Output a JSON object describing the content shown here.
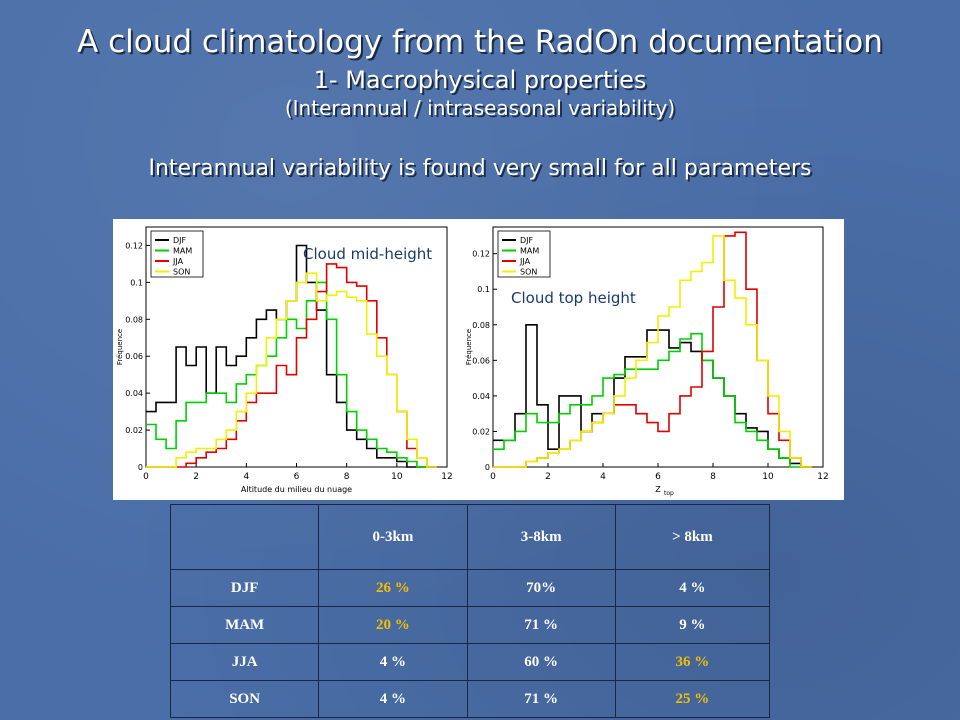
{
  "title": "A cloud climatology from the RadOn documentation",
  "subtitle": "1- Macrophysical properties",
  "subtitle2": "(Interannual / intraseasonal variability)",
  "headline": "Interannual variability is found very small for all parameters",
  "colors": {
    "DJF": "#000000",
    "MAM": "#00d000",
    "JJA": "#e00000",
    "SON": "#f0f000",
    "highlight": "#f2c000"
  },
  "chart_data": [
    {
      "type": "line",
      "annotation": "Cloud mid-height",
      "xlabel": "Altitude du milieu du nuage",
      "ylabel": "Fréquence",
      "xlim": [
        0,
        12
      ],
      "ylim": [
        0,
        0.13
      ],
      "xticks": [
        "0",
        "2",
        "4",
        "6",
        "8",
        "10",
        "12"
      ],
      "yticks": [
        "0",
        "0.02",
        "0.04",
        "0.06",
        "0.08",
        "0.1",
        "0.12"
      ],
      "legend_position": "top-left",
      "bin_edges": [
        0,
        0.4,
        0.8,
        1.2,
        1.6,
        2.0,
        2.4,
        2.8,
        3.2,
        3.6,
        4.0,
        4.4,
        4.8,
        5.2,
        5.6,
        6.0,
        6.4,
        6.8,
        7.2,
        7.6,
        8.0,
        8.4,
        8.8,
        9.2,
        9.6,
        10.0,
        10.4,
        10.8,
        11.2,
        11.6
      ],
      "series": [
        {
          "name": "DJF",
          "values": [
            0.03,
            0.035,
            0.035,
            0.065,
            0.055,
            0.065,
            0.04,
            0.065,
            0.055,
            0.06,
            0.07,
            0.08,
            0.085,
            0.08,
            0.09,
            0.12,
            0.1,
            0.085,
            0.05,
            0.035,
            0.02,
            0.015,
            0.01,
            0.005,
            0.005,
            0.003,
            0,
            0,
            0
          ]
        },
        {
          "name": "MAM",
          "values": [
            0.023,
            0.015,
            0.01,
            0.025,
            0.035,
            0.035,
            0.04,
            0.04,
            0.035,
            0.045,
            0.05,
            0.055,
            0.06,
            0.07,
            0.08,
            0.075,
            0.09,
            0.1,
            0.08,
            0.05,
            0.03,
            0.02,
            0.015,
            0.01,
            0.008,
            0.005,
            0.003,
            0,
            0
          ]
        },
        {
          "name": "JJA",
          "values": [
            0,
            0,
            0,
            0,
            0.002,
            0.005,
            0.008,
            0.01,
            0.015,
            0.025,
            0.035,
            0.04,
            0.04,
            0.055,
            0.05,
            0.07,
            0.08,
            0.095,
            0.11,
            0.108,
            0.1,
            0.098,
            0.09,
            0.07,
            0.05,
            0.03,
            0.01,
            0.005,
            0
          ]
        },
        {
          "name": "SON",
          "values": [
            0,
            0,
            0,
            0.005,
            0.008,
            0.01,
            0.01,
            0.015,
            0.02,
            0.03,
            0.04,
            0.055,
            0.07,
            0.08,
            0.09,
            0.1,
            0.105,
            0.09,
            0.093,
            0.095,
            0.092,
            0.09,
            0.072,
            0.06,
            0.05,
            0.03,
            0.015,
            0.005,
            0
          ]
        }
      ]
    },
    {
      "type": "line",
      "annotation": "Cloud top height",
      "xlabel": "Z",
      "xlabel_sub": "top",
      "ylabel": "Fréquence",
      "xlim": [
        0,
        12
      ],
      "ylim": [
        0,
        0.135
      ],
      "xticks": [
        "0",
        "2",
        "4",
        "6",
        "8",
        "10",
        "12"
      ],
      "yticks": [
        "0",
        "0.02",
        "0.04",
        "0.06",
        "0.08",
        "0.1",
        "0.12"
      ],
      "legend_position": "top-left",
      "bin_edges": [
        0,
        0.4,
        0.8,
        1.2,
        1.6,
        2.0,
        2.4,
        2.8,
        3.2,
        3.6,
        4.0,
        4.4,
        4.8,
        5.2,
        5.6,
        6.0,
        6.4,
        6.8,
        7.2,
        7.6,
        8.0,
        8.4,
        8.8,
        9.2,
        9.6,
        10.0,
        10.4,
        10.8,
        11.2,
        11.6
      ],
      "series": [
        {
          "name": "DJF",
          "values": [
            0.015,
            0.015,
            0.03,
            0.08,
            0.035,
            0.01,
            0.04,
            0.04,
            0.02,
            0.03,
            0.03,
            0.05,
            0.062,
            0.062,
            0.077,
            0.077,
            0.067,
            0.07,
            0.065,
            0.06,
            0.05,
            0.04,
            0.03,
            0.022,
            0.02,
            0.01,
            0.005,
            0.002,
            0
          ]
        },
        {
          "name": "MAM",
          "values": [
            0.01,
            0.015,
            0.02,
            0.03,
            0.025,
            0.025,
            0.03,
            0.035,
            0.035,
            0.04,
            0.05,
            0.052,
            0.055,
            0.055,
            0.055,
            0.06,
            0.065,
            0.072,
            0.075,
            0.06,
            0.05,
            0.04,
            0.025,
            0.02,
            0.015,
            0.01,
            0.005,
            0,
            0
          ]
        },
        {
          "name": "JJA",
          "values": [
            0,
            0,
            0,
            0.003,
            0.005,
            0.008,
            0.01,
            0.015,
            0.02,
            0.025,
            0.03,
            0.035,
            0.035,
            0.03,
            0.025,
            0.02,
            0.03,
            0.04,
            0.045,
            0.065,
            0.09,
            0.13,
            0.132,
            0.1,
            0.06,
            0.03,
            0.015,
            0.005,
            0
          ]
        },
        {
          "name": "SON",
          "values": [
            0,
            0,
            0,
            0.003,
            0.005,
            0.008,
            0.01,
            0.015,
            0.02,
            0.025,
            0.03,
            0.04,
            0.05,
            0.06,
            0.07,
            0.085,
            0.09,
            0.105,
            0.11,
            0.115,
            0.13,
            0.105,
            0.095,
            0.08,
            0.06,
            0.04,
            0.02,
            0.005,
            0
          ]
        }
      ]
    }
  ],
  "table": {
    "headers": [
      "",
      "0-3km",
      "3-8km",
      "> 8km"
    ],
    "rows": [
      {
        "label": "DJF",
        "c1": "26 %",
        "c2": "70%",
        "c3": "4 %"
      },
      {
        "label": "MAM",
        "c1": "20 %",
        "c2": "71 %",
        "c3": "9 %"
      },
      {
        "label": "JJA",
        "c1": "4 %",
        "c2": "60 %",
        "c3": "36 %"
      },
      {
        "label": "SON",
        "c1": "4 %",
        "c2": "71 %",
        "c3": "25 %"
      }
    ]
  }
}
